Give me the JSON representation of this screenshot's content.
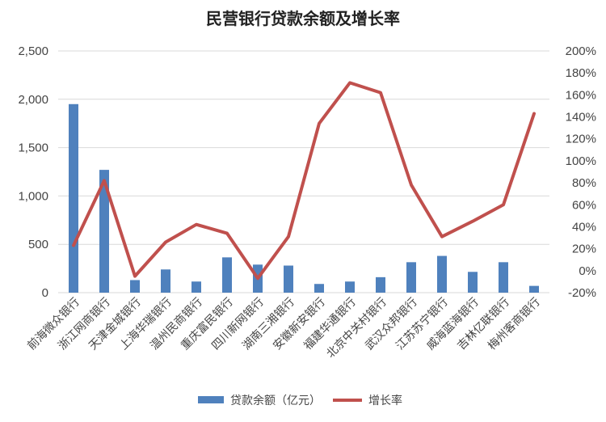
{
  "chart_data": {
    "type": "bar",
    "title": "民营银行贷款余额及增长率",
    "categories": [
      "前海微众银行",
      "浙江网商银行",
      "天津金城银行",
      "上海华瑞银行",
      "温州民商银行",
      "重庆富民银行",
      "四川新网银行",
      "湖南三湘银行",
      "安徽新安银行",
      "福建华通银行",
      "北京中关村银行",
      "武汉众邦银行",
      "江苏苏宁银行",
      "威海蓝海银行",
      "吉林亿联银行",
      "梅州客商银行"
    ],
    "series": [
      {
        "name": "贷款余额（亿元）",
        "type": "bar",
        "axis": "left",
        "color": "#4f81bd",
        "values": [
          1950,
          1270,
          130,
          240,
          115,
          365,
          290,
          280,
          90,
          115,
          160,
          315,
          380,
          215,
          315,
          70
        ]
      },
      {
        "name": "增长率",
        "type": "line",
        "axis": "right",
        "color": "#c0504d",
        "values": [
          23,
          82,
          -5,
          26,
          42,
          34,
          -7,
          31,
          134,
          171,
          162,
          78,
          31,
          45,
          60,
          143
        ]
      }
    ],
    "left_axis": {
      "ylim": [
        0,
        2500
      ],
      "ticks": [
        "0",
        "500",
        "1,000",
        "1,500",
        "2,000",
        "2,500"
      ]
    },
    "right_axis": {
      "ylim": [
        -20,
        200
      ],
      "ticks": [
        "-20%",
        "0%",
        "20%",
        "40%",
        "60%",
        "80%",
        "100%",
        "120%",
        "140%",
        "160%",
        "180%",
        "200%"
      ]
    },
    "grid": true,
    "legend": "bottom"
  }
}
